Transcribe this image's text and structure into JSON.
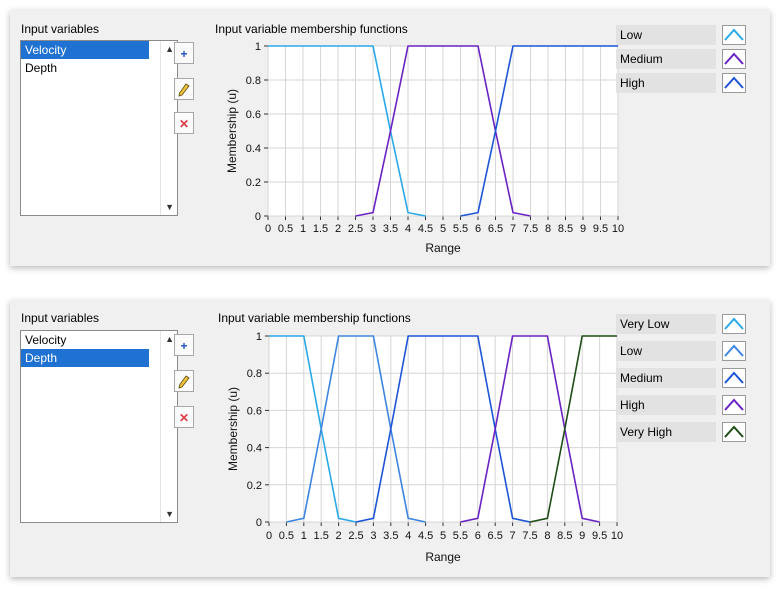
{
  "panels": [
    {
      "list_title": "Input variables",
      "list_items": [
        "Velocity",
        "Depth"
      ],
      "selected_index": 0,
      "buttons": {
        "add_icon": "plus-icon",
        "edit_icon": "pencil-icon",
        "delete_icon": "close-icon"
      },
      "chart_title": "Input variable membership functions",
      "legend": [
        {
          "label": "Low",
          "color": "#29a9e8"
        },
        {
          "label": "Medium",
          "color": "#6a22c4"
        },
        {
          "label": "High",
          "color": "#1d55d6"
        }
      ]
    },
    {
      "list_title": "Input variables",
      "list_items": [
        "Velocity",
        "Depth"
      ],
      "selected_index": 1,
      "buttons": {
        "add_icon": "plus-icon",
        "edit_icon": "pencil-icon",
        "delete_icon": "close-icon"
      },
      "chart_title": "Input variable membership functions",
      "legend": [
        {
          "label": "Very Low",
          "color": "#29a9e8"
        },
        {
          "label": "Low",
          "color": "#3d85e0"
        },
        {
          "label": "Medium",
          "color": "#1d55d6"
        },
        {
          "label": "High",
          "color": "#6a22c4"
        },
        {
          "label": "Very High",
          "color": "#1e4d16"
        }
      ]
    }
  ],
  "chart_data": [
    {
      "type": "line",
      "title": "Input variable membership functions",
      "xlabel": "Range",
      "ylabel": "Membership (u)",
      "xlim": [
        0,
        10
      ],
      "ylim": [
        0,
        1
      ],
      "x_ticks": [
        "0",
        "0.5",
        "1",
        "1.5",
        "2",
        "2.5",
        "3",
        "3.5",
        "4",
        "4.5",
        "5",
        "5.5",
        "6",
        "6.5",
        "7",
        "7.5",
        "8",
        "8.5",
        "9",
        "9.5",
        "10"
      ],
      "y_ticks": [
        "0",
        "0.2",
        "0.4",
        "0.6",
        "0.8",
        "1"
      ],
      "grid": true,
      "series": [
        {
          "name": "Low",
          "color": "#29a9e8",
          "points": [
            [
              0,
              1
            ],
            [
              3,
              1
            ],
            [
              3.5,
              0.5
            ],
            [
              4,
              0.02
            ],
            [
              4.5,
              0
            ]
          ]
        },
        {
          "name": "Medium",
          "color": "#6a22c4",
          "points": [
            [
              2.5,
              0
            ],
            [
              3,
              0.02
            ],
            [
              3.5,
              0.5
            ],
            [
              4,
              1
            ],
            [
              6,
              1
            ],
            [
              6.5,
              0.5
            ],
            [
              7,
              0.02
            ],
            [
              7.5,
              0
            ]
          ]
        },
        {
          "name": "High",
          "color": "#1d55d6",
          "points": [
            [
              5.5,
              0
            ],
            [
              6,
              0.02
            ],
            [
              6.5,
              0.5
            ],
            [
              7,
              1
            ],
            [
              10,
              1
            ]
          ]
        }
      ]
    },
    {
      "type": "line",
      "title": "Input variable membership functions",
      "xlabel": "Range",
      "ylabel": "Membership (u)",
      "xlim": [
        0,
        10
      ],
      "ylim": [
        0,
        1
      ],
      "x_ticks": [
        "0",
        "0.5",
        "1",
        "1.5",
        "2",
        "2.5",
        "3",
        "3.5",
        "4",
        "4.5",
        "5",
        "5.5",
        "6",
        "6.5",
        "7",
        "7.5",
        "8",
        "8.5",
        "9",
        "9.5",
        "10"
      ],
      "y_ticks": [
        "0",
        "0.2",
        "0.4",
        "0.6",
        "0.8",
        "1"
      ],
      "grid": true,
      "series": [
        {
          "name": "Very Low",
          "color": "#29a9e8",
          "points": [
            [
              0,
              1
            ],
            [
              1,
              1
            ],
            [
              1.5,
              0.5
            ],
            [
              2,
              0.02
            ],
            [
              2.5,
              0
            ]
          ]
        },
        {
          "name": "Low",
          "color": "#3d85e0",
          "points": [
            [
              0.5,
              0
            ],
            [
              1,
              0.02
            ],
            [
              1.5,
              0.5
            ],
            [
              2,
              1
            ],
            [
              3,
              1
            ],
            [
              3.5,
              0.5
            ],
            [
              4,
              0.02
            ],
            [
              4.5,
              0
            ]
          ]
        },
        {
          "name": "Medium",
          "color": "#1d55d6",
          "points": [
            [
              2.5,
              0
            ],
            [
              3,
              0.02
            ],
            [
              3.5,
              0.5
            ],
            [
              4,
              1
            ],
            [
              6,
              1
            ],
            [
              6.5,
              0.5
            ],
            [
              7,
              0.02
            ],
            [
              7.5,
              0
            ]
          ]
        },
        {
          "name": "High",
          "color": "#6a22c4",
          "points": [
            [
              5.5,
              0
            ],
            [
              6,
              0.02
            ],
            [
              6.5,
              0.5
            ],
            [
              7,
              1
            ],
            [
              8,
              1
            ],
            [
              8.5,
              0.5
            ],
            [
              9,
              0.02
            ],
            [
              9.5,
              0
            ]
          ]
        },
        {
          "name": "Very High",
          "color": "#1e4d16",
          "points": [
            [
              7.5,
              0
            ],
            [
              8,
              0.02
            ],
            [
              8.5,
              0.5
            ],
            [
              9,
              1
            ],
            [
              10,
              1
            ]
          ]
        }
      ]
    }
  ]
}
